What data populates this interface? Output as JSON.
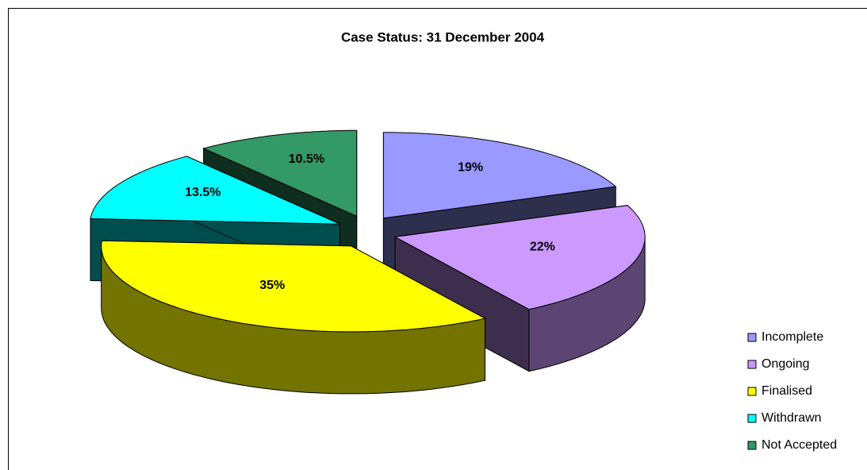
{
  "chart_data": {
    "type": "pie3d",
    "title": "Case Status: 31 December 2004",
    "categories": [
      "Incomplete",
      "Ongoing",
      "Finalised",
      "Withdrawn",
      "Not Accepted"
    ],
    "values": [
      19,
      22,
      35,
      13.5,
      10.5
    ],
    "value_labels": [
      "19%",
      "22%",
      "35%",
      "13.5%",
      "10.5%"
    ],
    "colors": [
      "#9999ff",
      "#cc99ff",
      "#ffff00",
      "#00ffff",
      "#339966"
    ],
    "legend": "right"
  }
}
